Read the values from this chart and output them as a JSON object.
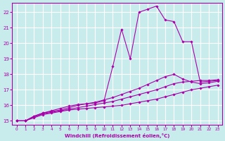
{
  "xlabel": "Windchill (Refroidissement éolien,°C)",
  "bg_color": "#c8ecec",
  "grid_color": "#ffffff",
  "line_color": "#aa00aa",
  "xlim": [
    -0.5,
    23.5
  ],
  "ylim": [
    14.75,
    22.6
  ],
  "yticks": [
    15,
    16,
    17,
    18,
    19,
    20,
    21,
    22
  ],
  "xticks": [
    0,
    1,
    2,
    3,
    4,
    5,
    6,
    7,
    8,
    9,
    10,
    11,
    12,
    13,
    14,
    15,
    16,
    17,
    18,
    19,
    20,
    21,
    22,
    23
  ],
  "series": [
    {
      "x": [
        0,
        1,
        2,
        3,
        4,
        5,
        6,
        7,
        8,
        9,
        10,
        11,
        12,
        13,
        14,
        15,
        16,
        17,
        18,
        19,
        20,
        21,
        22,
        23
      ],
      "y": [
        15.0,
        15.0,
        15.2,
        15.4,
        15.5,
        15.6,
        15.7,
        15.75,
        15.8,
        15.85,
        15.9,
        15.95,
        16.0,
        16.1,
        16.2,
        16.3,
        16.4,
        16.55,
        16.7,
        16.85,
        17.0,
        17.1,
        17.2,
        17.3
      ]
    },
    {
      "x": [
        0,
        1,
        2,
        3,
        4,
        5,
        6,
        7,
        8,
        9,
        10,
        11,
        12,
        13,
        14,
        15,
        16,
        17,
        18,
        19,
        20,
        21,
        22,
        23
      ],
      "y": [
        15.0,
        15.0,
        15.25,
        15.45,
        15.55,
        15.65,
        15.75,
        15.85,
        15.95,
        16.05,
        16.15,
        16.25,
        16.4,
        16.55,
        16.7,
        16.85,
        17.0,
        17.2,
        17.4,
        17.5,
        17.55,
        17.6,
        17.6,
        17.65
      ]
    },
    {
      "x": [
        0,
        1,
        2,
        3,
        4,
        5,
        6,
        7,
        8,
        9,
        10,
        11,
        12,
        13,
        14,
        15,
        16,
        17,
        18,
        19,
        20,
        21,
        22,
        23
      ],
      "y": [
        15.0,
        15.0,
        15.3,
        15.5,
        15.6,
        15.7,
        15.85,
        16.0,
        16.1,
        16.2,
        16.35,
        16.5,
        16.7,
        16.9,
        17.1,
        17.35,
        17.6,
        17.85,
        18.0,
        17.7,
        17.5,
        17.4,
        17.45,
        17.55
      ]
    },
    {
      "x": [
        0,
        1,
        2,
        3,
        4,
        5,
        6,
        7,
        8,
        9,
        10,
        11,
        12,
        13,
        14,
        15,
        16,
        17,
        18,
        19,
        20,
        21,
        22,
        23
      ],
      "y": [
        15.0,
        15.0,
        15.3,
        15.5,
        15.65,
        15.8,
        15.95,
        16.05,
        16.1,
        16.15,
        16.3,
        18.5,
        20.9,
        19.0,
        22.0,
        22.2,
        22.4,
        21.5,
        21.4,
        20.1,
        20.1,
        17.5,
        17.55,
        17.6
      ]
    }
  ]
}
